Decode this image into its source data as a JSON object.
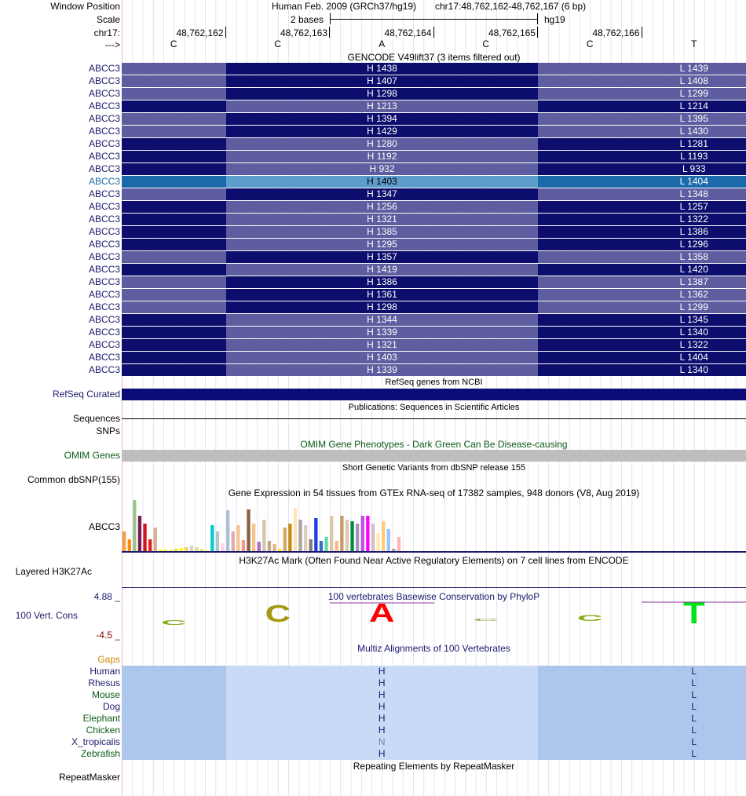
{
  "header": {
    "row_labels": [
      "Window Position",
      "Scale",
      "chr17:",
      "--->"
    ],
    "assembly": "Human Feb. 2009 (GRCh37/hg19)",
    "position": "chr17:48,762,162-48,762,167 (6 bp)",
    "scale_text": "2 bases",
    "scale_db": "hg19",
    "coords": [
      "48,762,162",
      "48,762,163",
      "48,762,164",
      "48,762,165",
      "48,762,166"
    ],
    "bases": [
      "C",
      "C",
      "A",
      "C",
      "C",
      "T"
    ]
  },
  "gencode": {
    "title": "GENCODE V49lift37 (3 items filtered out)",
    "highlight_index": 9,
    "colors": {
      "dark": "#0c0d6c",
      "light": "#5d5d9f",
      "hl_left": "#1a6aab",
      "hl_mid": "#5d9dcb",
      "hl_label": "#1a6aab"
    },
    "rows": [
      {
        "gene": "ABCC3",
        "h": "H 1438",
        "l": "L 1439",
        "tone": "light"
      },
      {
        "gene": "ABCC3",
        "h": "H 1407",
        "l": "L 1408",
        "tone": "light"
      },
      {
        "gene": "ABCC3",
        "h": "H 1298",
        "l": "L 1299",
        "tone": "light"
      },
      {
        "gene": "ABCC3",
        "h": "H 1213",
        "l": "L 1214",
        "tone": "dark"
      },
      {
        "gene": "ABCC3",
        "h": "H 1394",
        "l": "L 1395",
        "tone": "light"
      },
      {
        "gene": "ABCC3",
        "h": "H 1429",
        "l": "L 1430",
        "tone": "light"
      },
      {
        "gene": "ABCC3",
        "h": "H 1280",
        "l": "L 1281",
        "tone": "dark"
      },
      {
        "gene": "ABCC3",
        "h": "H 1192",
        "l": "L 1193",
        "tone": "dark"
      },
      {
        "gene": "ABCC3",
        "h": "H 932",
        "l": "L 933",
        "tone": "dark"
      },
      {
        "gene": "ABCC3",
        "h": "H 1403",
        "l": "L 1404",
        "tone": "highlight"
      },
      {
        "gene": "ABCC3",
        "h": "H 1347",
        "l": "L 1348",
        "tone": "light"
      },
      {
        "gene": "ABCC3",
        "h": "H 1256",
        "l": "L 1257",
        "tone": "dark"
      },
      {
        "gene": "ABCC3",
        "h": "H 1321",
        "l": "L 1322",
        "tone": "dark"
      },
      {
        "gene": "ABCC3",
        "h": "H 1385",
        "l": "L 1386",
        "tone": "dark"
      },
      {
        "gene": "ABCC3",
        "h": "H 1295",
        "l": "L 1296",
        "tone": "dark"
      },
      {
        "gene": "ABCC3",
        "h": "H 1357",
        "l": "L 1358",
        "tone": "light"
      },
      {
        "gene": "ABCC3",
        "h": "H 1419",
        "l": "L 1420",
        "tone": "dark"
      },
      {
        "gene": "ABCC3",
        "h": "H 1386",
        "l": "L 1387",
        "tone": "light"
      },
      {
        "gene": "ABCC3",
        "h": "H 1361",
        "l": "L 1362",
        "tone": "light"
      },
      {
        "gene": "ABCC3",
        "h": "H 1298",
        "l": "L 1299",
        "tone": "light"
      },
      {
        "gene": "ABCC3",
        "h": "H 1344",
        "l": "L 1345",
        "tone": "dark"
      },
      {
        "gene": "ABCC3",
        "h": "H 1339",
        "l": "L 1340",
        "tone": "dark"
      },
      {
        "gene": "ABCC3",
        "h": "H 1321",
        "l": "L 1322",
        "tone": "dark"
      },
      {
        "gene": "ABCC3",
        "h": "H 1403",
        "l": "L 1404",
        "tone": "dark"
      },
      {
        "gene": "ABCC3",
        "h": "H 1339",
        "l": "L 1340",
        "tone": "dark"
      }
    ]
  },
  "refseq": {
    "title": "RefSeq genes from NCBI",
    "label": "RefSeq Curated",
    "color": "#0c0c78"
  },
  "publications": {
    "title": "Publications: Sequences in Scientific Articles",
    "label1": "Sequences",
    "label2": "SNPs"
  },
  "omim": {
    "title": "OMIM Gene Phenotypes - Dark Green Can Be Disease-causing",
    "label": "OMIM Genes",
    "color": "#0b5a16",
    "bar": "#bebebe"
  },
  "dbsnp": {
    "title": "Short Genetic Variants from dbSNP release 155",
    "label": "Common dbSNP(155)"
  },
  "gtex": {
    "title": "Gene Expression in 54 tissues from GTEx RNA-seq of 17382 samples, 948 donors (V8, Aug 2019)",
    "label": "ABCC3",
    "values": [
      25,
      15,
      65,
      45,
      35,
      15,
      30,
      2,
      2,
      2,
      3,
      4,
      5,
      7,
      5,
      3,
      2,
      33,
      25,
      10,
      52,
      25,
      33,
      14,
      53,
      35,
      12,
      40,
      13,
      9,
      3,
      30,
      35,
      55,
      40,
      33,
      15,
      42,
      13,
      18,
      45,
      13,
      45,
      40,
      38,
      35,
      45,
      45,
      35,
      23,
      38,
      28,
      3,
      18
    ],
    "colors": [
      "#f1a147",
      "#fb8a14",
      "#9ac58a",
      "#7b1b4f",
      "#d1161a",
      "#e52119",
      "#d3b095",
      "#ffff00",
      "#ffff00",
      "#f3f377",
      "#eaea30",
      "#ffff00",
      "#f4d06a",
      "#d3d3d3",
      "#e0e088",
      "#e5e577",
      "#ffff7c",
      "#00cad1",
      "#b0c4ce",
      "#ffd3e1",
      "#a7c0d7",
      "#e5a8ac",
      "#f6c592",
      "#fa958b",
      "#8a6041",
      "#f6c488",
      "#b26bc7",
      "#d4c5a8",
      "#c1a988",
      "#e5b591",
      "#f5ea1b",
      "#d7a85d",
      "#c48b11",
      "#ffe4b4",
      "#aaa3a3",
      "#ddcdbf",
      "#7c7c73",
      "#1f3bea",
      "#416cc3",
      "#66d8a3",
      "#ddc6ab",
      "#f4b988",
      "#c59b6a",
      "#dac8b3",
      "#008a3e",
      "#a095b5",
      "#be4fe2",
      "#ff00ff",
      "#d1bfbf",
      "#ffe8af",
      "#ffcc77",
      "#96c6ff",
      "#a4a4a4",
      "#ffb4b4"
    ]
  },
  "h3k27ac": {
    "title": "H3K27Ac Mark (Often Found Near Active Regulatory Elements) on 7 cell lines from ENCODE",
    "label": "Layered H3K27Ac"
  },
  "phylop": {
    "title": "100 vertebrates Basewise Conservation by PhyloP",
    "label": "100 Vert. Cons",
    "max_label": "4.88 _",
    "min_label": "-4.5 _",
    "letters": [
      {
        "ch": "C",
        "color": "#82b01e"
      },
      {
        "ch": "C",
        "color": "#a49a14"
      },
      {
        "ch": "A",
        "color": "#ff0000"
      },
      {
        "ch": "C",
        "color": "#8fa74b"
      },
      {
        "ch": "C",
        "color": "#89ac18"
      },
      {
        "ch": "T",
        "color": "#00e41c"
      }
    ]
  },
  "multiz": {
    "title": "Multiz Alignments of 100 Vertebrates",
    "gaps_label": "Gaps",
    "gaps_color": "#cc8800",
    "colors": {
      "side": "#adc7ec",
      "mid": "#c8daf5"
    },
    "species": [
      {
        "name": "Human",
        "color": "#1a1a6c",
        "mid": "H",
        "right": "L"
      },
      {
        "name": "Rhesus",
        "color": "#1a1a6c",
        "mid": "H",
        "right": "L"
      },
      {
        "name": "Mouse",
        "color": "#0b5a16",
        "mid": "H",
        "right": "L"
      },
      {
        "name": "Dog",
        "color": "#1a1a6c",
        "mid": "H",
        "right": "L"
      },
      {
        "name": "Elephant",
        "color": "#0b5a16",
        "mid": "H",
        "right": "L"
      },
      {
        "name": "Chicken",
        "color": "#0b5a16",
        "mid": "H",
        "right": "L"
      },
      {
        "name": "X_tropicalis",
        "color": "#1a1a6c",
        "mid": "N",
        "right": "L"
      },
      {
        "name": "Zebrafish",
        "color": "#0b5a16",
        "mid": "H",
        "right": "L"
      }
    ]
  },
  "repeatmasker": {
    "title": "Repeating Elements by RepeatMasker",
    "label": "RepeatMasker"
  }
}
